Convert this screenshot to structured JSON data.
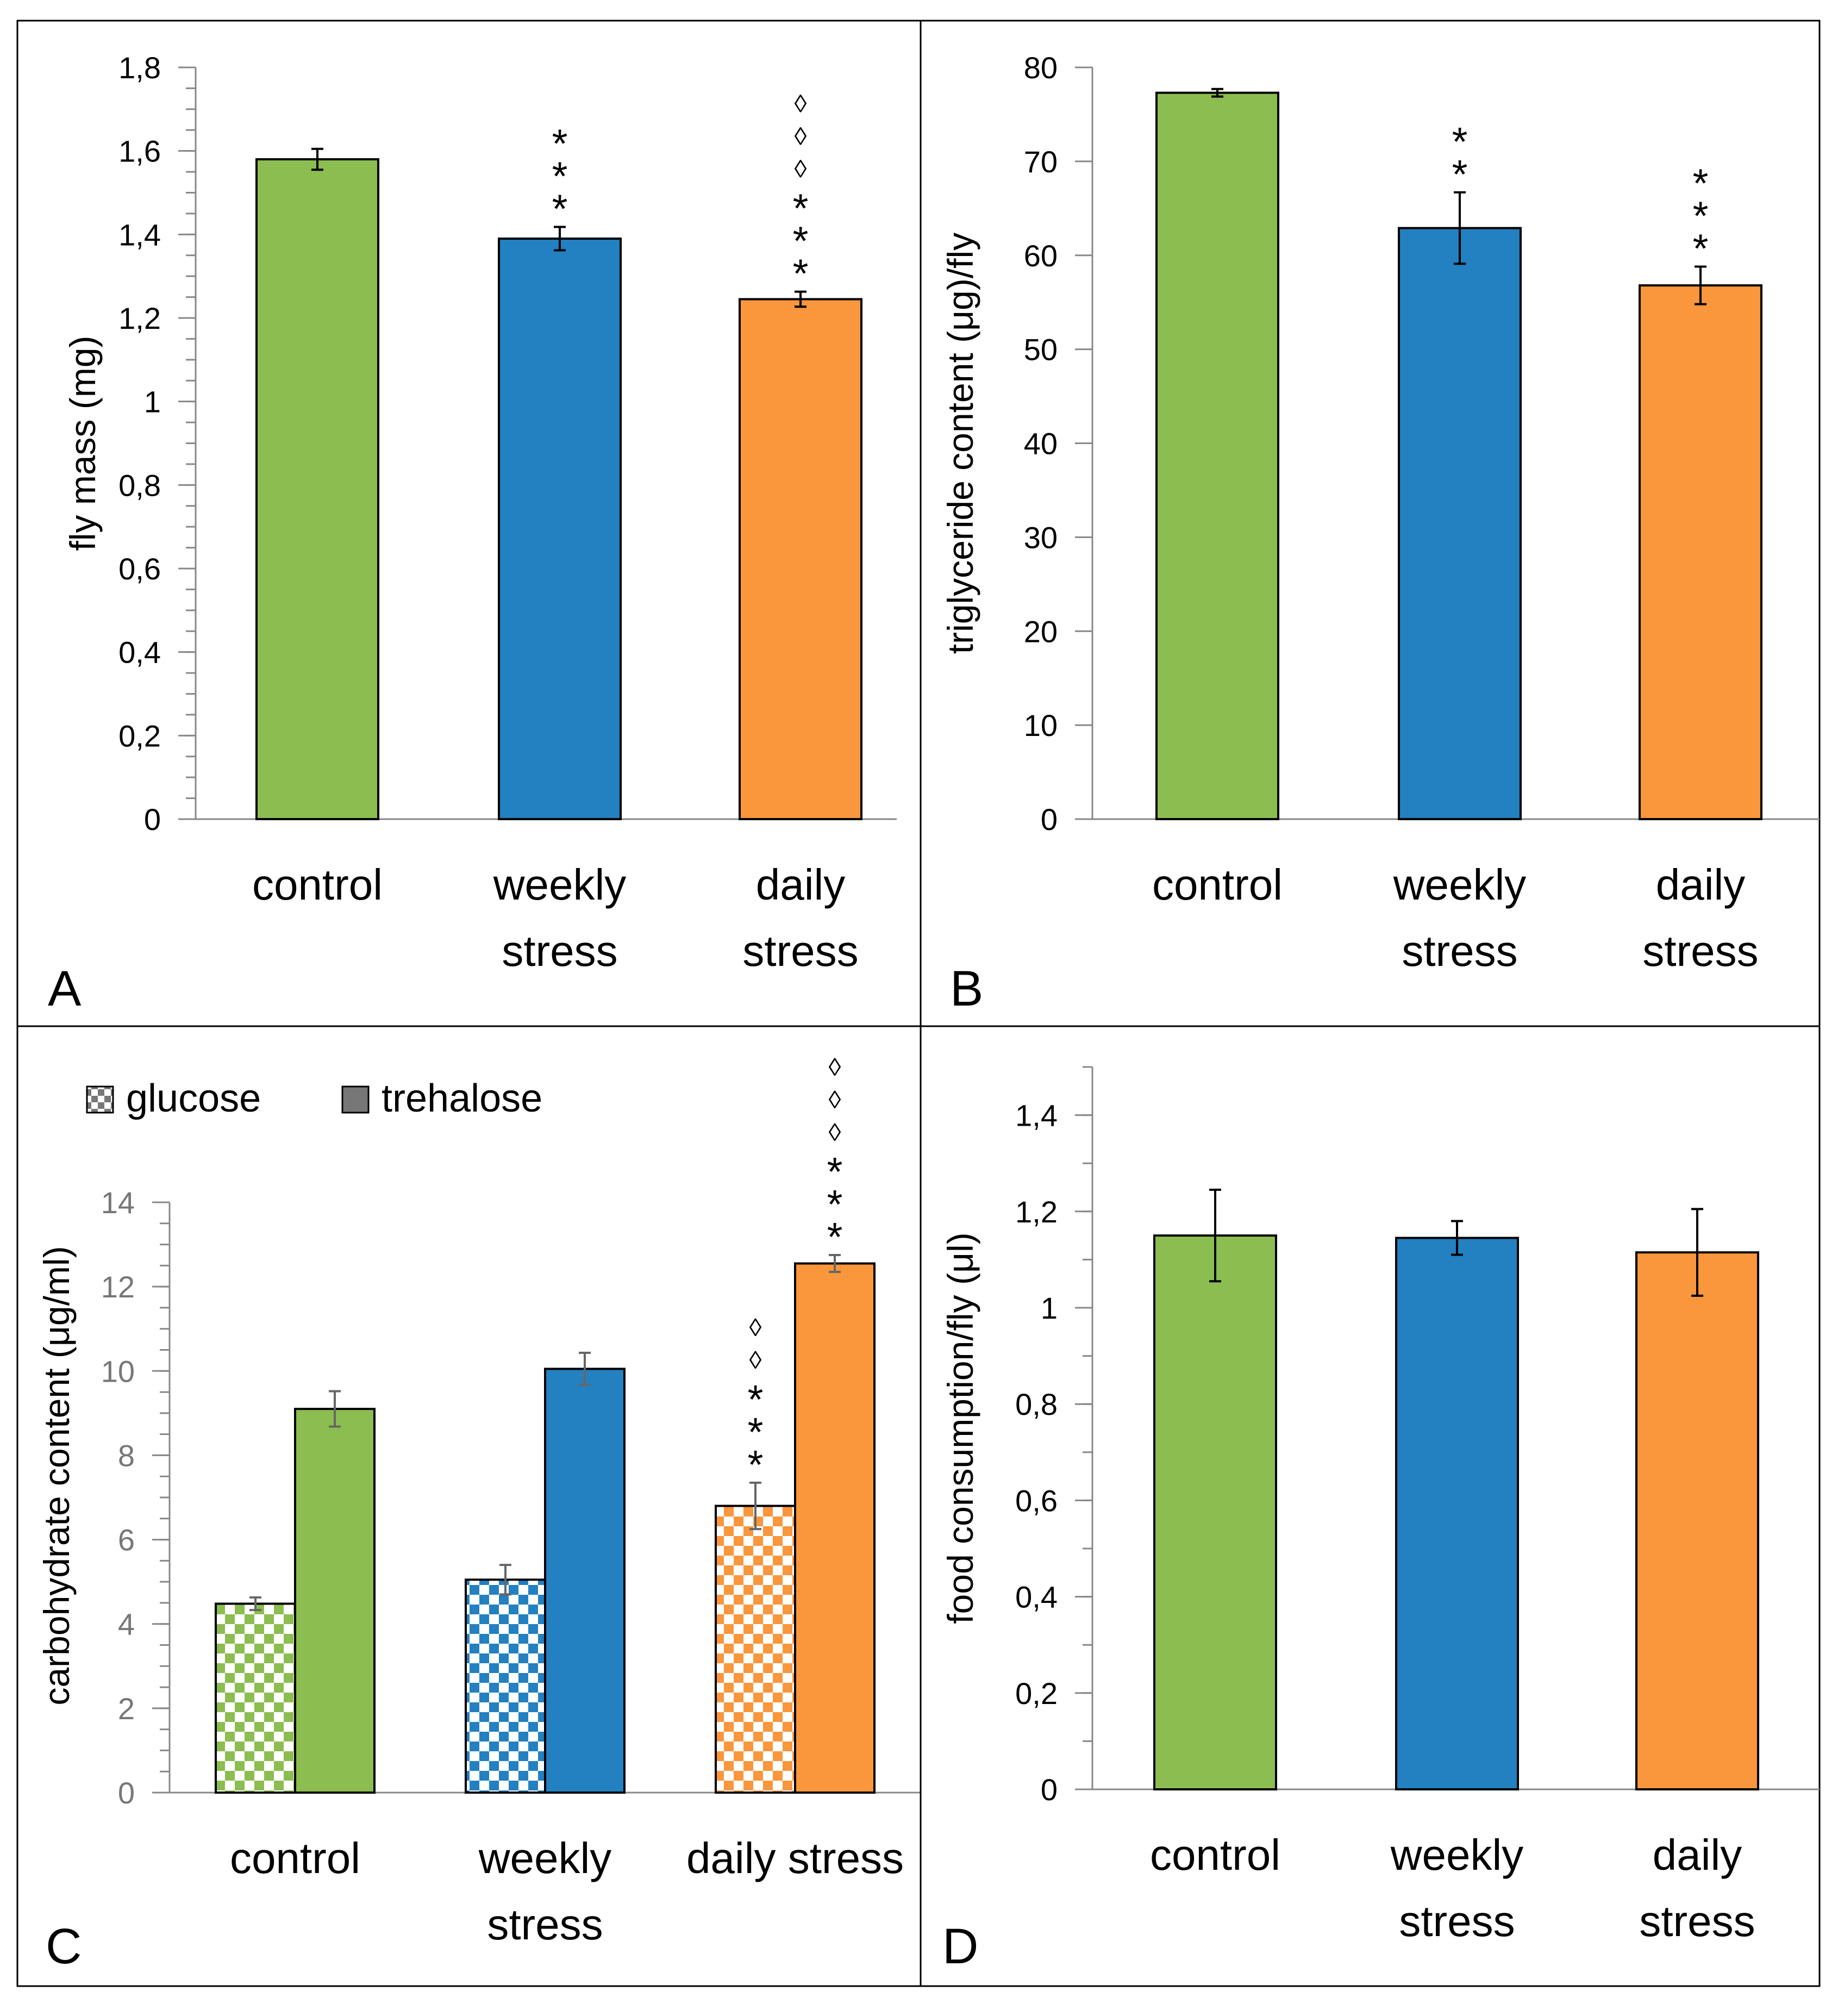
{
  "colors": {
    "control": "#8cbd50",
    "weekly": "#2380c1",
    "daily": "#fa963c",
    "axis": "#888888",
    "text": "#000000",
    "error_bar": "#000000",
    "error_bar_c": "#666666",
    "legend_fill": "#777777",
    "panel_border": "#000000"
  },
  "chart_data": [
    {
      "panel": "A",
      "type": "bar",
      "ylabel": "fly mass (mg)",
      "ylim": [
        0,
        1.8
      ],
      "ticks": [
        "0",
        "0,2",
        "0,4",
        "0,6",
        "0,8",
        "1",
        "1,2",
        "1,4",
        "1,6",
        "1,8"
      ],
      "tick_values": [
        0,
        0.2,
        0.4,
        0.6,
        0.8,
        1.0,
        1.2,
        1.4,
        1.6,
        1.8
      ],
      "minor_step": 0.05,
      "categories": [
        [
          "control"
        ],
        [
          "weekly",
          "stress"
        ],
        [
          "daily",
          "stress"
        ]
      ],
      "values": [
        1.58,
        1.39,
        1.245
      ],
      "errors": [
        0.025,
        0.028,
        0.018
      ],
      "annotations": [
        [],
        [
          "*",
          "*",
          "*"
        ],
        [
          "*",
          "*",
          "*",
          "◊",
          "◊",
          "◊"
        ]
      ]
    },
    {
      "panel": "B",
      "type": "bar",
      "ylabel": "triglyceride content (μg)/fly",
      "ylim": [
        0,
        80
      ],
      "ticks": [
        "0",
        "10",
        "20",
        "30",
        "40",
        "50",
        "60",
        "70",
        "80"
      ],
      "tick_values": [
        0,
        10,
        20,
        30,
        40,
        50,
        60,
        70,
        80
      ],
      "minor_step": 0,
      "categories": [
        [
          "control"
        ],
        [
          "weekly",
          "stress"
        ],
        [
          "daily",
          "stress"
        ]
      ],
      "values": [
        77.3,
        62.9,
        56.8
      ],
      "errors": [
        0.4,
        3.8,
        2.0
      ],
      "annotations": [
        [],
        [
          "*",
          "*"
        ],
        [
          "*",
          "*",
          "*"
        ]
      ]
    },
    {
      "panel": "C",
      "type": "bar",
      "ylabel": "carbohydrate content  (μg/ml)",
      "ylim": [
        0,
        14
      ],
      "ticks": [
        "0",
        "2",
        "4",
        "6",
        "8",
        "10",
        "12",
        "14"
      ],
      "tick_values": [
        0,
        2,
        4,
        6,
        8,
        10,
        12,
        14
      ],
      "minor_step": 0.5,
      "categories": [
        [
          "control"
        ],
        [
          "weekly",
          "stress"
        ],
        [
          "daily stress"
        ]
      ],
      "legend": [
        "glucose",
        "trehalose"
      ],
      "series": [
        {
          "name": "glucose",
          "values": [
            4.48,
            5.05,
            6.8
          ],
          "errors": [
            0.15,
            0.35,
            0.55
          ],
          "annotations": [
            [],
            [],
            [
              "*",
              "*",
              "*",
              "◊",
              "◊"
            ]
          ]
        },
        {
          "name": "trehalose",
          "values": [
            9.1,
            10.05,
            12.55
          ],
          "errors": [
            0.42,
            0.38,
            0.2
          ],
          "annotations": [
            [],
            [],
            [
              "*",
              "*",
              "*",
              "◊",
              "◊",
              "◊"
            ]
          ]
        }
      ]
    },
    {
      "panel": "D",
      "type": "bar",
      "ylabel": "food consumption/fly (μl)",
      "ylim": [
        0,
        1.5
      ],
      "ticks": [
        "0",
        "0,2",
        "0,4",
        "0,6",
        "0,8",
        "1",
        "1,2",
        "1,4"
      ],
      "tick_values": [
        0,
        0.2,
        0.4,
        0.6,
        0.8,
        1.0,
        1.2,
        1.4
      ],
      "minor_step": 0.1,
      "categories": [
        [
          "control"
        ],
        [
          "weekly",
          "stress"
        ],
        [
          "daily",
          "stress"
        ]
      ],
      "values": [
        1.15,
        1.145,
        1.115
      ],
      "errors": [
        0.095,
        0.035,
        0.09
      ],
      "annotations": [
        [],
        [],
        []
      ]
    }
  ]
}
